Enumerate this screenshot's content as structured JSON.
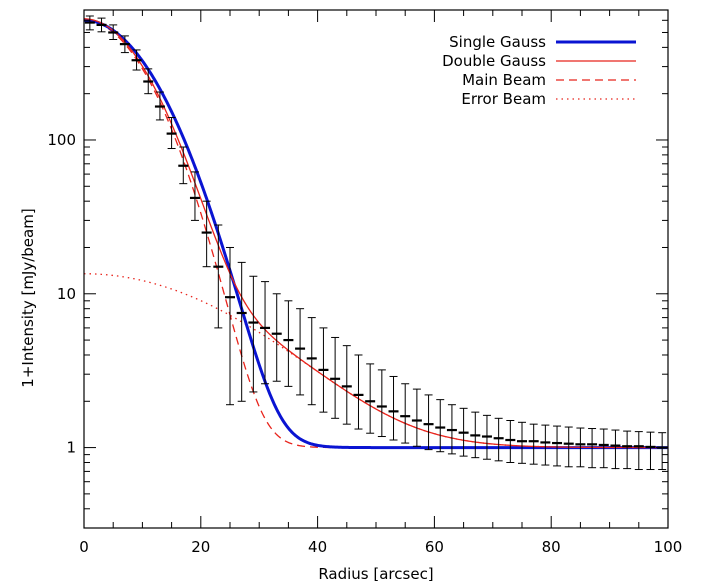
{
  "chart_data": {
    "type": "line",
    "xlabel": "Radius [arcsec]",
    "ylabel": "1+Intensity [mJy/beam]",
    "xlim": [
      0,
      100
    ],
    "ylim": [
      0.3,
      700
    ],
    "yscale": "log",
    "x_ticks": [
      0,
      20,
      40,
      60,
      80,
      100
    ],
    "x_tick_labels": [
      "0",
      "20",
      "40",
      "60",
      "80",
      "100"
    ],
    "y_ticks": [
      1,
      10,
      100
    ],
    "y_tick_labels": [
      "1",
      "10",
      "100"
    ],
    "legend_position": "top-right",
    "legend": [
      {
        "label": "Single Gauss",
        "color": "#0a14d2",
        "style": "solid-thick"
      },
      {
        "label": "Double Gauss",
        "color": "#e8241c",
        "style": "solid"
      },
      {
        "label": "Main Beam",
        "color": "#e8241c",
        "style": "dashed"
      },
      {
        "label": "Error Beam",
        "color": "#e8241c",
        "style": "dotted"
      }
    ],
    "data_points": {
      "x": [
        1,
        3,
        5,
        7,
        9,
        11,
        13,
        15,
        17,
        19,
        21,
        23,
        25,
        27,
        29,
        31,
        33,
        35,
        37,
        39,
        41,
        43,
        45,
        47,
        49,
        51,
        53,
        55,
        57,
        59,
        61,
        63,
        65,
        67,
        69,
        71,
        73,
        75,
        77,
        79,
        81,
        83,
        85,
        87,
        89,
        91,
        93,
        95,
        97,
        99
      ],
      "y": [
        580,
        560,
        500,
        420,
        330,
        240,
        165,
        110,
        68,
        42,
        25,
        15,
        9.5,
        7.5,
        6.5,
        6.0,
        5.5,
        5.0,
        4.4,
        3.8,
        3.2,
        2.8,
        2.5,
        2.2,
        2.0,
        1.85,
        1.72,
        1.6,
        1.5,
        1.42,
        1.35,
        1.3,
        1.25,
        1.2,
        1.18,
        1.15,
        1.12,
        1.1,
        1.1,
        1.08,
        1.07,
        1.06,
        1.05,
        1.05,
        1.04,
        1.03,
        1.02,
        1.02,
        1.01,
        1.0
      ],
      "y_low": [
        520,
        505,
        450,
        370,
        285,
        200,
        135,
        88,
        52,
        30,
        15,
        6,
        1.9,
        2.0,
        2.3,
        2.6,
        2.7,
        2.5,
        2.2,
        1.9,
        1.7,
        1.55,
        1.42,
        1.32,
        1.24,
        1.18,
        1.12,
        1.07,
        1.02,
        0.97,
        0.94,
        0.91,
        0.88,
        0.86,
        0.84,
        0.82,
        0.8,
        0.79,
        0.78,
        0.77,
        0.76,
        0.75,
        0.75,
        0.74,
        0.74,
        0.73,
        0.73,
        0.72,
        0.72,
        0.72
      ],
      "y_high": [
        640,
        620,
        560,
        475,
        385,
        290,
        205,
        140,
        90,
        62,
        40,
        28,
        20,
        16,
        13,
        12,
        10,
        9,
        8,
        7,
        6,
        5.2,
        4.6,
        4.0,
        3.5,
        3.2,
        2.9,
        2.6,
        2.4,
        2.2,
        2.05,
        1.9,
        1.8,
        1.7,
        1.62,
        1.55,
        1.5,
        1.46,
        1.42,
        1.4,
        1.38,
        1.36,
        1.34,
        1.33,
        1.32,
        1.3,
        1.28,
        1.27,
        1.26,
        1.25
      ]
    },
    "models": {
      "single_gauss": {
        "peak": 600,
        "fwhm": 21.3,
        "offset": 1,
        "color": "#0a14d2"
      },
      "main_beam": {
        "peak": 600,
        "fwhm": 19.5,
        "offset": 1,
        "color": "#e8241c"
      },
      "error_beam": {
        "peak": 12.5,
        "fwhm": 50,
        "offset": 1,
        "color": "#e8241c"
      }
    }
  }
}
